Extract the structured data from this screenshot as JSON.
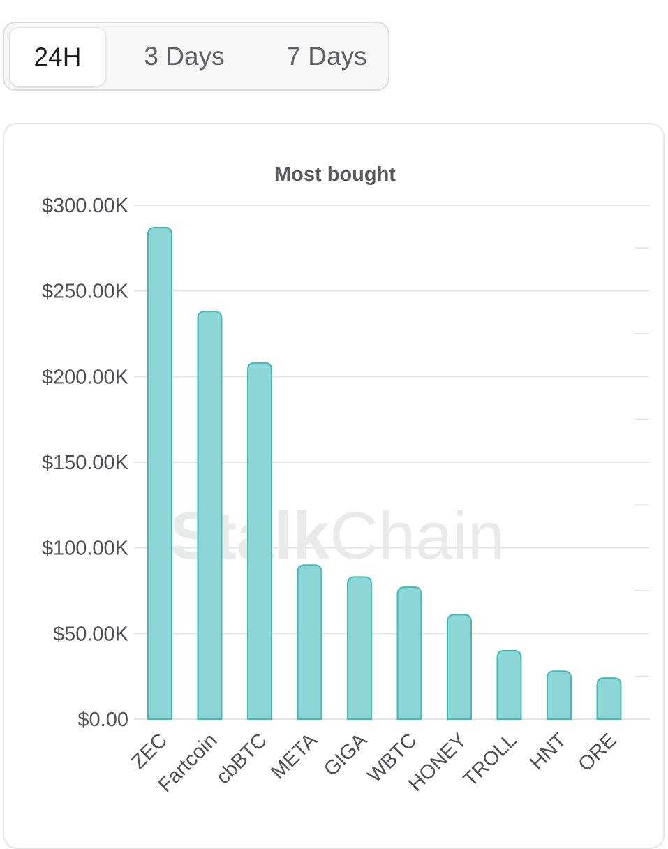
{
  "tabs": {
    "items": [
      {
        "label": "24H",
        "active": true
      },
      {
        "label": "3 Days",
        "active": false
      },
      {
        "label": "7 Days",
        "active": false
      }
    ]
  },
  "watermark": {
    "bold_part": "Stalk",
    "light_part": "Chain"
  },
  "colors": {
    "bar_fill": "#8dd6d6",
    "bar_stroke": "#46b8b6",
    "grid": "#e4e4e7"
  },
  "chart_data": {
    "type": "bar",
    "title": "Most bought",
    "xlabel": "",
    "ylabel": "",
    "ylim": [
      0,
      300000
    ],
    "yticks": [
      0,
      50000,
      100000,
      150000,
      200000,
      250000,
      300000
    ],
    "ytick_labels": [
      "$0.00",
      "$50.00K",
      "$100.00K",
      "$150.00K",
      "$200.00K",
      "$250.00K",
      "$300.00K"
    ],
    "categories": [
      "ZEC",
      "Fartcoin",
      "cbBTC",
      "META",
      "GIGA",
      "WBTC",
      "HONEY",
      "TROLL",
      "HNT",
      "ORE"
    ],
    "values": [
      287000,
      238000,
      208000,
      90000,
      83000,
      77000,
      61000,
      40000,
      28000,
      24000
    ],
    "grid": true,
    "legend": "none"
  }
}
